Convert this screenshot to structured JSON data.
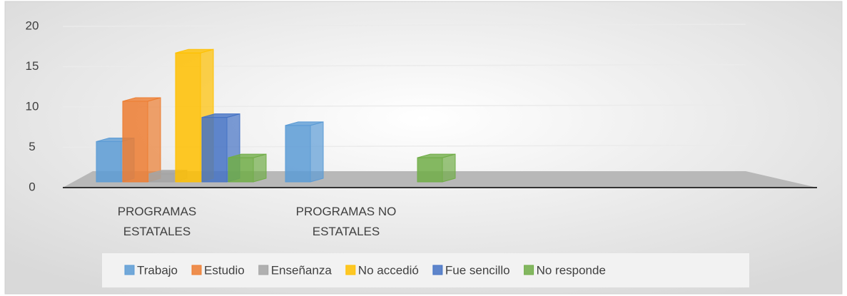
{
  "chart_data": {
    "type": "bar3d",
    "categories": [
      "PROGRAMAS ESTATALES",
      "PROGRAMAS NO ESTATALES",
      null,
      null
    ],
    "series": [
      {
        "name": "Trabajo",
        "color": "#5b9bd5",
        "values": [
          5,
          7,
          null,
          null
        ]
      },
      {
        "name": "Estudio",
        "color": "#ed7d31",
        "values": [
          10,
          null,
          null,
          null
        ]
      },
      {
        "name": "Enseñanza",
        "color": "#a5a5a5",
        "values": [
          1,
          null,
          null,
          null
        ]
      },
      {
        "name": "No accedió",
        "color": "#ffc000",
        "values": [
          16,
          null,
          null,
          null
        ]
      },
      {
        "name": "Fue sencillo",
        "color": "#4472c4",
        "values": [
          8,
          null,
          null,
          null
        ]
      },
      {
        "name": "No responde",
        "color": "#70ad47",
        "values": [
          3,
          3,
          null,
          null
        ]
      }
    ],
    "ylim": [
      0,
      20
    ],
    "yticks": [
      0,
      5,
      10,
      15,
      20
    ],
    "grid": true,
    "legend": "bottom"
  }
}
